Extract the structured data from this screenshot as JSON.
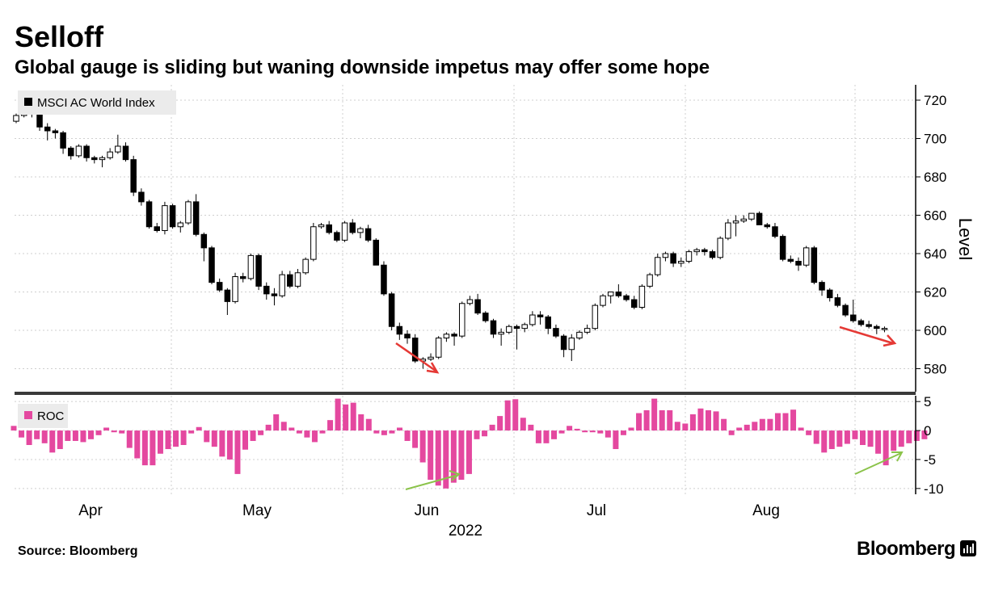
{
  "header": {
    "title": "Selloff",
    "subtitle": "Global gauge is sliding but waning downside impetus may offer some hope"
  },
  "footer": {
    "source": "Source: Bloomberg",
    "brand": "Bloomberg"
  },
  "chart_data": [
    {
      "type": "candlestick",
      "legend": "MSCI AC World Index",
      "ylabel": "Level",
      "ylim": [
        568,
        728
      ],
      "yticks": [
        580,
        600,
        620,
        640,
        660,
        680,
        700,
        720
      ],
      "grid": true,
      "legend_position": "top-left",
      "up_color": "#ffffff",
      "down_color": "#000000",
      "x": [
        "Mar 29",
        "Mar 30",
        "Mar 31",
        "Apr 1",
        "Apr 4",
        "Apr 5",
        "Apr 6",
        "Apr 7",
        "Apr 8",
        "Apr 11",
        "Apr 12",
        "Apr 13",
        "Apr 14",
        "Apr 18",
        "Apr 19",
        "Apr 20",
        "Apr 21",
        "Apr 22",
        "Apr 25",
        "Apr 26",
        "Apr 27",
        "Apr 28",
        "Apr 29",
        "May 2",
        "May 3",
        "May 4",
        "May 5",
        "May 6",
        "May 9",
        "May 10",
        "May 11",
        "May 12",
        "May 13",
        "May 16",
        "May 17",
        "May 18",
        "May 19",
        "May 20",
        "May 23",
        "May 24",
        "May 25",
        "May 26",
        "May 27",
        "May 30",
        "May 31",
        "Jun 1",
        "Jun 2",
        "Jun 3",
        "Jun 6",
        "Jun 7",
        "Jun 8",
        "Jun 9",
        "Jun 10",
        "Jun 13",
        "Jun 14",
        "Jun 15",
        "Jun 16",
        "Jun 17",
        "Jun 20",
        "Jun 21",
        "Jun 22",
        "Jun 23",
        "Jun 24",
        "Jun 27",
        "Jun 28",
        "Jun 29",
        "Jun 30",
        "Jul 1",
        "Jul 5",
        "Jul 6",
        "Jul 7",
        "Jul 8",
        "Jul 11",
        "Jul 12",
        "Jul 13",
        "Jul 14",
        "Jul 15",
        "Jul 18",
        "Jul 19",
        "Jul 20",
        "Jul 21",
        "Jul 22",
        "Jul 25",
        "Jul 26",
        "Jul 27",
        "Jul 28",
        "Jul 29",
        "Aug 1",
        "Aug 2",
        "Aug 3",
        "Aug 4",
        "Aug 5",
        "Aug 8",
        "Aug 9",
        "Aug 10",
        "Aug 11",
        "Aug 12",
        "Aug 15",
        "Aug 16",
        "Aug 17",
        "Aug 18",
        "Aug 19",
        "Aug 22",
        "Aug 23",
        "Aug 24",
        "Aug 25",
        "Aug 26",
        "Aug 29",
        "Aug 30",
        "Aug 31",
        "Sep 1",
        "Sep 2",
        "Sep 5"
      ],
      "ohlc": [
        [
          709,
          713,
          708,
          712
        ],
        [
          712,
          721,
          711,
          719
        ],
        [
          720,
          721,
          711,
          713
        ],
        [
          713,
          714,
          704,
          706
        ],
        [
          706,
          708,
          699,
          704
        ],
        [
          704,
          705,
          700,
          703
        ],
        [
          703,
          704,
          692,
          695
        ],
        [
          695,
          696,
          689,
          691
        ],
        [
          691,
          697,
          690,
          696
        ],
        [
          696,
          697,
          688,
          690
        ],
        [
          690,
          691,
          687,
          689
        ],
        [
          689,
          691,
          685,
          690
        ],
        [
          690,
          695,
          689,
          693
        ],
        [
          693,
          702,
          692,
          696
        ],
        [
          696,
          698,
          688,
          689
        ],
        [
          689,
          691,
          670,
          672
        ],
        [
          672,
          674,
          665,
          667
        ],
        [
          667,
          668,
          653,
          654
        ],
        [
          654,
          656,
          651,
          652
        ],
        [
          652,
          667,
          650,
          665
        ],
        [
          665,
          666,
          653,
          654
        ],
        [
          654,
          657,
          651,
          656
        ],
        [
          656,
          668,
          655,
          667
        ],
        [
          667,
          671,
          649,
          650
        ],
        [
          650,
          651,
          636,
          643
        ],
        [
          643,
          644,
          624,
          625
        ],
        [
          625,
          627,
          620,
          621
        ],
        [
          621,
          622,
          608,
          615
        ],
        [
          615,
          630,
          614,
          628
        ],
        [
          628,
          630,
          625,
          627
        ],
        [
          627,
          640,
          626,
          639
        ],
        [
          639,
          640,
          621,
          623
        ],
        [
          623,
          625,
          616,
          619
        ],
        [
          619,
          622,
          613,
          618
        ],
        [
          618,
          631,
          617,
          629
        ],
        [
          629,
          631,
          622,
          623
        ],
        [
          623,
          632,
          622,
          630
        ],
        [
          630,
          638,
          629,
          637
        ],
        [
          637,
          656,
          636,
          654
        ],
        [
          654,
          656,
          653,
          655
        ],
        [
          655,
          657,
          650,
          651
        ],
        [
          651,
          652,
          646,
          647
        ],
        [
          647,
          657,
          646,
          656
        ],
        [
          656,
          658,
          650,
          651
        ],
        [
          651,
          654,
          648,
          653
        ],
        [
          653,
          655,
          646,
          647
        ],
        [
          647,
          648,
          634,
          634
        ],
        [
          634,
          636,
          618,
          619
        ],
        [
          619,
          620,
          600,
          602
        ],
        [
          602,
          604,
          595,
          598
        ],
        [
          598,
          600,
          593,
          596
        ],
        [
          596,
          598,
          583,
          584
        ],
        [
          584,
          586,
          580,
          585
        ],
        [
          585,
          588,
          584,
          586
        ],
        [
          586,
          597,
          585,
          596
        ],
        [
          596,
          599,
          594,
          598
        ],
        [
          598,
          599,
          592,
          597
        ],
        [
          597,
          615,
          596,
          614
        ],
        [
          614,
          618,
          613,
          616
        ],
        [
          616,
          619,
          608,
          609
        ],
        [
          609,
          610,
          604,
          605
        ],
        [
          605,
          606,
          596,
          598
        ],
        [
          598,
          601,
          592,
          599
        ],
        [
          599,
          603,
          598,
          602
        ],
        [
          602,
          603,
          590,
          601
        ],
        [
          601,
          604,
          599,
          603
        ],
        [
          603,
          610,
          602,
          608
        ],
        [
          608,
          610,
          603,
          607
        ],
        [
          607,
          608,
          598,
          601
        ],
        [
          601,
          603,
          596,
          597
        ],
        [
          597,
          598,
          586,
          590
        ],
        [
          590,
          598,
          584,
          596
        ],
        [
          596,
          600,
          595,
          599
        ],
        [
          599,
          603,
          598,
          601
        ],
        [
          601,
          614,
          600,
          613
        ],
        [
          613,
          619,
          612,
          618
        ],
        [
          618,
          620,
          614,
          620
        ],
        [
          620,
          624,
          617,
          618
        ],
        [
          618,
          619,
          615,
          616
        ],
        [
          616,
          618,
          611,
          612
        ],
        [
          612,
          624,
          611,
          623
        ],
        [
          623,
          630,
          622,
          629
        ],
        [
          629,
          640,
          628,
          638
        ],
        [
          638,
          641,
          636,
          640
        ],
        [
          640,
          641,
          633,
          635
        ],
        [
          635,
          638,
          633,
          636
        ],
        [
          636,
          642,
          635,
          641
        ],
        [
          641,
          643,
          639,
          642
        ],
        [
          642,
          643,
          639,
          641
        ],
        [
          641,
          642,
          637,
          638
        ],
        [
          638,
          649,
          637,
          648
        ],
        [
          648,
          658,
          647,
          656
        ],
        [
          656,
          660,
          649,
          657
        ],
        [
          657,
          660,
          656,
          658
        ],
        [
          658,
          661,
          657,
          661
        ],
        [
          661,
          662,
          655,
          655
        ],
        [
          655,
          656,
          653,
          654
        ],
        [
          654,
          656,
          648,
          649
        ],
        [
          649,
          650,
          636,
          637
        ],
        [
          637,
          639,
          635,
          636
        ],
        [
          636,
          638,
          631,
          634
        ],
        [
          634,
          644,
          633,
          643
        ],
        [
          643,
          644,
          624,
          625
        ],
        [
          625,
          626,
          618,
          621
        ],
        [
          621,
          622,
          615,
          617
        ],
        [
          617,
          619,
          612,
          613
        ],
        [
          613,
          614,
          607,
          608
        ],
        [
          608,
          616,
          604,
          605
        ],
        [
          605,
          606,
          602,
          603
        ],
        [
          603,
          605,
          601,
          602
        ],
        [
          602,
          603,
          598,
          601
        ],
        [
          601,
          602,
          599,
          601
        ]
      ]
    },
    {
      "type": "bar",
      "legend": "ROC",
      "ylim": [
        -11,
        6
      ],
      "yticks": [
        -10,
        -5,
        0,
        5
      ],
      "grid": true,
      "legend_position": "top-left",
      "color": "#e4489f",
      "x_tick_labels": [
        "Apr",
        "May",
        "Jun",
        "Jul",
        "Aug"
      ],
      "x_group_label": "2022",
      "values": [
        0.8,
        -1.2,
        -2.5,
        -1.5,
        -2.2,
        -3.8,
        -3.2,
        -1.8,
        -1.8,
        -2,
        -1.5,
        -0.8,
        0.5,
        -0.3,
        -0.5,
        -3,
        -4.8,
        -6,
        -6,
        -4,
        -3.2,
        -2.8,
        -2.5,
        -0.5,
        0.6,
        -2,
        -2.8,
        -4.5,
        -5,
        -7.5,
        -3.3,
        -1.8,
        -0.8,
        1,
        2.8,
        1.5,
        0.5,
        -0.5,
        -1.2,
        -2,
        -0.5,
        1.8,
        5.5,
        4.5,
        4.8,
        2.8,
        2,
        -0.5,
        -0.8,
        -0.5,
        0.5,
        -1.8,
        -3,
        -5.5,
        -8.5,
        -9.5,
        -10,
        -9,
        -8.5,
        -7.5,
        -1.5,
        -1,
        1,
        2.5,
        5.2,
        5.4,
        2.2,
        1,
        -2.2,
        -2.2,
        -1.5,
        -0.5,
        0.8,
        0.3,
        -0.3,
        -0.3,
        -0.5,
        -1.2,
        -3.2,
        -0.8,
        0.5,
        3,
        3.5,
        5.5,
        3.5,
        3.5,
        1.5,
        1.2,
        2.8,
        3.8,
        3.5,
        3.3,
        2,
        -0.8,
        0.5,
        1,
        1.5,
        2,
        2,
        3,
        3,
        3.6,
        0.5,
        -0.8,
        -2.3,
        -3.8,
        -3.2,
        -2.8,
        -2.3,
        -1.5,
        -2.5,
        -2.8,
        -4,
        -6,
        -3.5,
        -2.8,
        -2.2,
        -1.8,
        -1.5
      ]
    }
  ],
  "annotations": [
    {
      "name": "arrow-down-price-1",
      "color": "#e53935"
    },
    {
      "name": "arrow-down-price-2",
      "color": "#e53935"
    },
    {
      "name": "arrow-up-roc-1",
      "color": "#8bc34a"
    },
    {
      "name": "arrow-up-roc-2",
      "color": "#8bc34a"
    }
  ]
}
